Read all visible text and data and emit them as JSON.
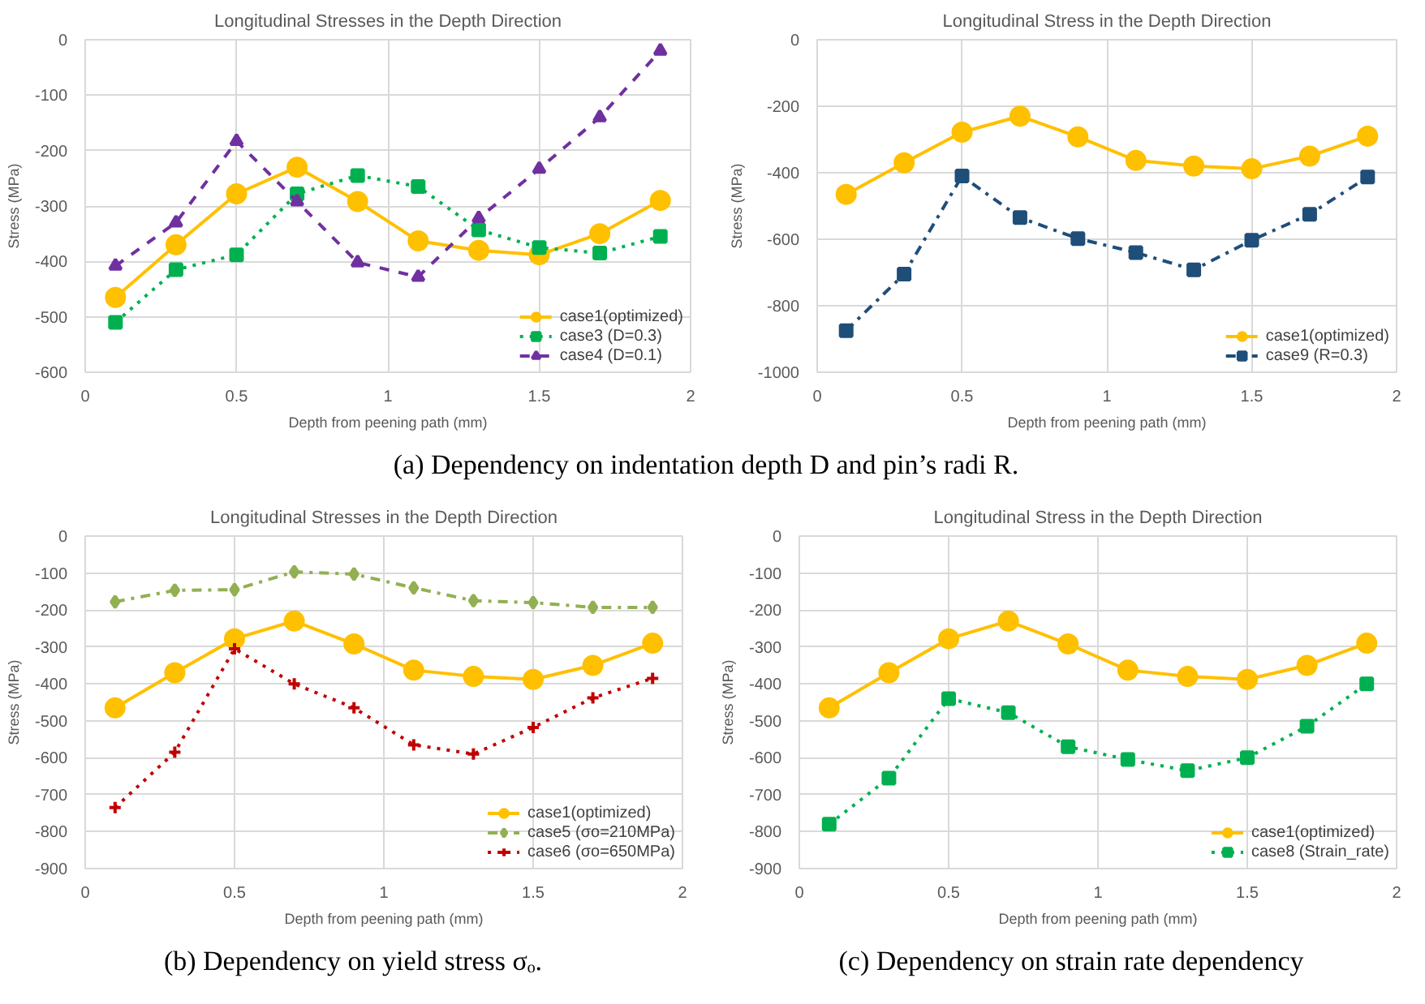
{
  "chart_data": [
    {
      "type": "line",
      "title": "Longitudinal Stresses in the Depth Direction",
      "xlabel": "Depth from peening path (mm)",
      "ylabel": "Stress (MPa)",
      "x": [
        0.1,
        0.3,
        0.5,
        0.7,
        0.9,
        1.1,
        1.3,
        1.5,
        1.7,
        1.9
      ],
      "series": [
        {
          "name": "case1(optimized)",
          "color": "#ffc000",
          "marker": "circle",
          "line_style": "solid",
          "values": [
            -465,
            -370,
            -278,
            -230,
            -292,
            -363,
            -380,
            -388,
            -350,
            -290
          ]
        },
        {
          "name": "case3 (D=0.3)",
          "color": "#00b050",
          "marker": "square",
          "line_style": "dotted",
          "values": [
            -510,
            -415,
            -388,
            -278,
            -245,
            -265,
            -343,
            -375,
            -385,
            -355
          ]
        },
        {
          "name": "case4 (D=0.1)",
          "color": "#7030a0",
          "marker": "triangle",
          "line_style": "dashed",
          "values": [
            -408,
            -330,
            -183,
            -292,
            -402,
            -428,
            -322,
            -233,
            -140,
            -20
          ]
        }
      ],
      "xlim": [
        0,
        2
      ],
      "xticks": [
        0,
        0.5,
        1,
        1.5,
        2
      ],
      "ylim": [
        -600,
        0
      ],
      "yticks": [
        -600,
        -500,
        -400,
        -300,
        -200,
        -100,
        0
      ],
      "grid": true,
      "legend": "bottom right",
      "annotations": [
        "(a) Dependency on indentation depth D and pin’s radi R."
      ]
    },
    {
      "type": "line",
      "title": "Longitudinal Stress in the Depth Direction",
      "xlabel": "Depth from peening path (mm)",
      "ylabel": "Stress (MPa)",
      "x": [
        0.1,
        0.3,
        0.5,
        0.7,
        0.9,
        1.1,
        1.3,
        1.5,
        1.7,
        1.9
      ],
      "series": [
        {
          "name": "case1(optimized)",
          "color": "#ffc000",
          "marker": "circle",
          "line_style": "solid",
          "values": [
            -465,
            -370,
            -278,
            -230,
            -292,
            -363,
            -380,
            -388,
            -350,
            -290
          ]
        },
        {
          "name": "case9 (R=0.3)",
          "color": "#1f4e79",
          "marker": "square",
          "line_style": "dashdot",
          "values": [
            -875,
            -705,
            -410,
            -535,
            -598,
            -640,
            -692,
            -603,
            -525,
            -413
          ]
        }
      ],
      "xlim": [
        0,
        2
      ],
      "xticks": [
        0,
        0.5,
        1,
        1.5,
        2
      ],
      "ylim": [
        -1000,
        0
      ],
      "yticks": [
        -1000,
        -800,
        -600,
        -400,
        -200,
        0
      ],
      "grid": true,
      "legend": "bottom right"
    },
    {
      "type": "line",
      "title": "Longitudinal Stresses in the Depth Direction",
      "xlabel": "Depth from peening path (mm)",
      "ylabel": "Stress (MPa)",
      "x": [
        0.1,
        0.3,
        0.5,
        0.7,
        0.9,
        1.1,
        1.3,
        1.5,
        1.7,
        1.9
      ],
      "series": [
        {
          "name": "case1(optimized)",
          "color": "#ffc000",
          "marker": "circle",
          "line_style": "solid",
          "values": [
            -465,
            -370,
            -278,
            -230,
            -292,
            -363,
            -380,
            -388,
            -350,
            -290
          ]
        },
        {
          "name": "case5 (σo=210MPa)",
          "color": "#92b052",
          "marker": "diamond",
          "line_style": "dashdot",
          "values": [
            -178,
            -147,
            -145,
            -97,
            -103,
            -140,
            -175,
            -180,
            -193,
            -193
          ]
        },
        {
          "name": "case6 (σo=650MPa)",
          "color": "#c00000",
          "marker": "cross",
          "line_style": "dotted",
          "values": [
            -735,
            -585,
            -305,
            -400,
            -465,
            -565,
            -590,
            -518,
            -438,
            -385
          ]
        }
      ],
      "xlim": [
        0,
        2
      ],
      "xticks": [
        0,
        0.5,
        1,
        1.5,
        2
      ],
      "ylim": [
        -900,
        0
      ],
      "yticks": [
        -900,
        -800,
        -700,
        -600,
        -500,
        -400,
        -300,
        -200,
        -100,
        0
      ],
      "grid": true,
      "legend": "bottom right",
      "annotations": [
        "(b) Dependency on yield stress σₒ."
      ]
    },
    {
      "type": "line",
      "title": "Longitudinal Stress in the Depth Direction",
      "xlabel": "Depth from peening path (mm)",
      "ylabel": "Stress (MPa)",
      "x": [
        0.1,
        0.3,
        0.5,
        0.7,
        0.9,
        1.1,
        1.3,
        1.5,
        1.7,
        1.9
      ],
      "series": [
        {
          "name": "case1(optimized)",
          "color": "#ffc000",
          "marker": "circle",
          "line_style": "solid",
          "values": [
            -465,
            -370,
            -278,
            -230,
            -292,
            -363,
            -380,
            -388,
            -350,
            -290
          ]
        },
        {
          "name": "case8 (Strain_rate)",
          "color": "#00b050",
          "marker": "square",
          "line_style": "dotted",
          "values": [
            -780,
            -655,
            -440,
            -478,
            -570,
            -605,
            -635,
            -600,
            -515,
            -400
          ]
        }
      ],
      "xlim": [
        0,
        2
      ],
      "xticks": [
        0,
        0.5,
        1,
        1.5,
        2
      ],
      "ylim": [
        -900,
        0
      ],
      "yticks": [
        -900,
        -800,
        -700,
        -600,
        -500,
        -400,
        -300,
        -200,
        -100,
        0
      ],
      "grid": true,
      "legend": "bottom right",
      "annotations": [
        "(c) Dependency on strain rate dependency"
      ]
    }
  ]
}
